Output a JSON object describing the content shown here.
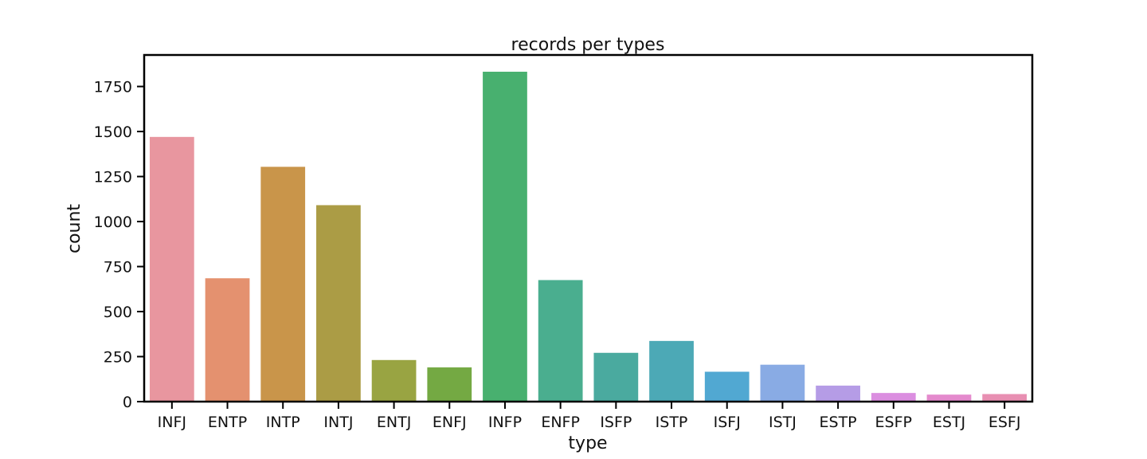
{
  "chart_data": {
    "type": "bar",
    "title": "records per types",
    "xlabel": "type",
    "ylabel": "count",
    "categories": [
      "INFJ",
      "ENTP",
      "INTP",
      "INTJ",
      "ENTJ",
      "ENFJ",
      "INFP",
      "ENFP",
      "ISFP",
      "ISTP",
      "ISFJ",
      "ISTJ",
      "ESTP",
      "ESFP",
      "ESTJ",
      "ESFJ"
    ],
    "values": [
      1470,
      685,
      1304,
      1091,
      231,
      190,
      1832,
      675,
      271,
      337,
      166,
      205,
      89,
      48,
      39,
      42
    ],
    "colors": [
      "#e8969f",
      "#e4916f",
      "#c9954a",
      "#ab9c45",
      "#99a442",
      "#74a943",
      "#48b06f",
      "#4aae8f",
      "#4aaa9f",
      "#4ca9b6",
      "#51a8d2",
      "#89abe4",
      "#b59ce6",
      "#db8ee0",
      "#e48acd",
      "#e88fb2"
    ],
    "ylim": [
      0,
      1925
    ],
    "yticks": [
      0,
      250,
      500,
      750,
      1000,
      1250,
      1500,
      1750
    ],
    "grid": false,
    "legend": "none"
  }
}
